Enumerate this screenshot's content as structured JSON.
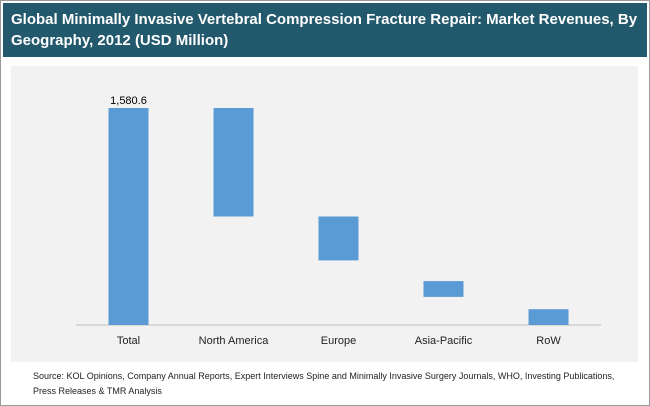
{
  "chart_data": {
    "type": "bar",
    "subtype": "waterfall",
    "title": "Global Minimally Invasive Vertebral Compression Fracture Repair: Market Revenues, By Geography, 2012 (USD Million)",
    "categories": [
      "Total",
      "North America",
      "Europe",
      "Asia-Pacific",
      "RoW"
    ],
    "segments": [
      {
        "category": "Total",
        "start": 0,
        "end": 1580.6
      },
      {
        "category": "North America",
        "start": 1580.6,
        "end": 790
      },
      {
        "category": "Europe",
        "start": 790,
        "end": 470
      },
      {
        "category": "Asia-Pacific",
        "start": 320,
        "end": 205
      },
      {
        "category": "RoW",
        "start": 115,
        "end": 0
      }
    ],
    "data_labels": [
      {
        "category": "Total",
        "text": "1,580.6"
      }
    ],
    "ylim": [
      0,
      1580.6
    ],
    "grid": false,
    "legend": "none",
    "bar_color": "#5b9bd5",
    "source": "Source: KOL Opinions, Company Annual Reports, Expert Interviews Spine and Minimally Invasive Surgery Journals, WHO, Investing Publications, Press Releases & TMR Analysis"
  },
  "colors": {
    "header": "#23596c",
    "plot_background": "#f2f2f2",
    "bar": "#5b9bd5"
  }
}
